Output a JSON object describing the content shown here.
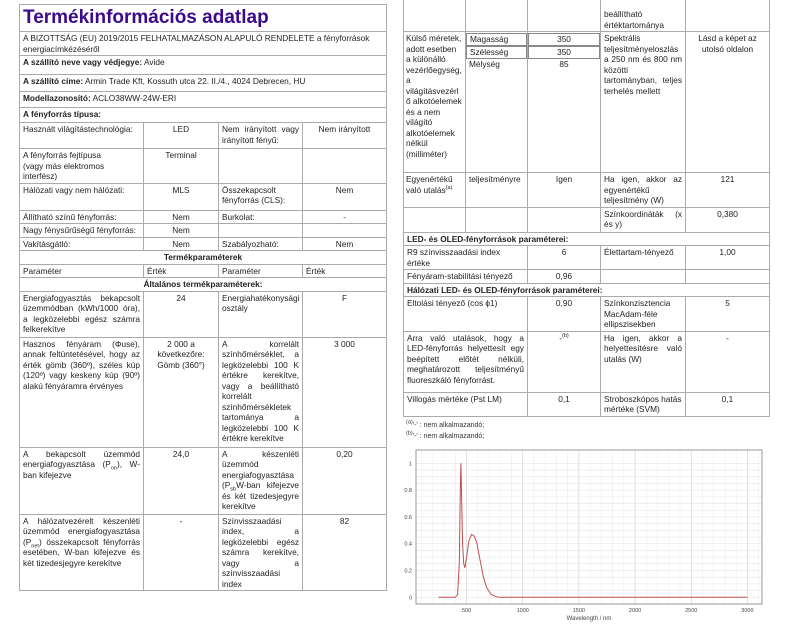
{
  "title": "Termékinformációs adatlap",
  "regulation": "A BIZOTTSÁG (EU) 2019/2015 FELHATALMAZÁSON ALAPULÓ RENDELETE a fényforrások energiacímkézéséről",
  "supplier": {
    "label": "A szállító neve vagy védjegye:",
    "value": "Avide"
  },
  "address": {
    "label": "A szállító címe:",
    "value": "Armin Trade Kft, Kossuth utca 22. II./4., 4024 Debrecen, HU"
  },
  "model": {
    "label": "Modellazonosító:",
    "value": "ACLO38WW-24W-ERI"
  },
  "type_label": "A fényforrás típusa:",
  "type_rows": [
    [
      "Használt világítástechnológia:",
      "LED",
      "Nem irányított vagy irányított fényű:",
      "Nem irányított"
    ],
    [
      "A fényforrás fejtípusa",
      "Terminal",
      "",
      ""
    ],
    [
      "(vagy más elektromos interfész)",
      "",
      "",
      ""
    ],
    [
      "Hálózati vagy nem hálózati:",
      "MLS",
      "Összekapcsolt fényforrás (CLS):",
      "Nem"
    ],
    [
      "Állítható színű fényforrás:",
      "Nem",
      "Burkolat:",
      "-"
    ],
    [
      "Nagy fénysűrűségű fényforrás:",
      "Nem",
      "",
      ""
    ],
    [
      "Vakításgátló:",
      "Nem",
      "Szabályozható:",
      "Nem"
    ]
  ],
  "params_title": "Termékparaméterek",
  "params_header": [
    "Paraméter",
    "Érték",
    "Paraméter",
    "Érték"
  ],
  "general_title": "Általános termékparaméterek:",
  "general_rows": [
    {
      "a": "Energiafogyasztás bekapcsolt üzemmódban (kWh/1000 óra), a legközelebbi egész számra felkerekítve",
      "b": "24",
      "c": "Energiahatékonysági osztály",
      "d": "F"
    },
    {
      "a": "Hasznos fényáram (Φuse), annak feltüntetésével, hogy az érték gömb (360º), széles kúp (120º) vagy keskeny kúp (90º) alakú fényáramra érvényes",
      "b": "2 000 a következőre: Gömb (360°)",
      "c": "A korrelált színhőmérséklet, a legközelebbi 100 K értékre kerekítve, vagy a beállítható korrelált színhőmérsékletek tartománya a legközelebbi 100 K értékre kerekítve",
      "d": "3 000"
    },
    {
      "a1": "A bekapcsolt üzemmód energiafogyasztása (P",
      "a_sub": "on",
      "a2": "), W-ban kifejezve",
      "b": "24,0",
      "c1": "A készenléti üzemmód energiafogyasztása (P",
      "c_sub": "sb",
      "c2": "W-ban kifejezve és két tizedesjegyre kerekítve",
      "d": "0,20"
    },
    {
      "a1": "A hálózatvezérelt készenléti üzemmód energiafogyasztása (P",
      "a_sub": "net",
      "a2": ") összekapcsolt fényforrás esetében, W-ban kifejezve és két tizedesjegyre kerekítve",
      "b": "-",
      "c": "Színvisszaadási index, a legközelebbi egész számra kerekítve, vagy a színvisszaadási index",
      "d": "82"
    }
  ],
  "right": {
    "cont": "beállítható értéktartománya",
    "dims": {
      "label": "Külső méretek, adott esetben a különálló vezérlőegység, a világításvezérlő alkotóelemek és a nem világító alkotóelemek nélkül (milliméter)",
      "items": [
        {
          "name": "Magasság",
          "value": "350"
        },
        {
          "name": "Szélesség",
          "value": "350"
        },
        {
          "name": "Mélység",
          "value": "85"
        }
      ],
      "spd_label": "Spektrális teljesítményeloszlás a 250 nm és 800 nm közötti tartományban, teljes terhelés mellett",
      "spd_value": "Lásd a képet az utolsó oldalon"
    },
    "equiv": {
      "label": "Egyenértékű való utalás",
      "sup": "(a)",
      "label2": "teljesítményre",
      "value": "Igen",
      "c": "Ha igen, akkor az egyenértékű teljesítmény (W)",
      "d": "121"
    },
    "coord": {
      "c": "Színkoordináták (x és y)",
      "d": "0,380"
    },
    "led_title": "LED- és OLED-fényforrások paraméterei:",
    "r9": {
      "a": "R9 színvisszaadási index értéke",
      "b": "6",
      "c": "Élettartam-tényező",
      "d": "1,00"
    },
    "flux": {
      "a": "Fényáram-stabilitási tényező",
      "b": "0,96"
    },
    "mains_title": "Hálózati LED- és OLED-fényforrások paraméterei:",
    "shift": {
      "a": "Eltolási tényező (cos ϕ1)",
      "b": "0,90",
      "c": "Színkonzisztencia MacAdam-féle ellipszisekben",
      "d": "5"
    },
    "replace": {
      "a": "Arra való utalások, hogy a LED-fényforrás helyettesít egy beépített előtét nélküli, meghatározott teljesítményű fluoreszkáló fényforrást.",
      "b": "-",
      "b_sup": "(b)",
      "c": "Ha igen, akkor a helyettesítésre való utalás (W)",
      "d": "-"
    },
    "flicker": {
      "a": "Villogás mértéke (Pst LM)",
      "b": "0,1",
      "c": "Stroboszkópos hatás mértéke (SVM)",
      "d": "0,1"
    },
    "foot_a_sup": "(a)",
    "foot_a": "'-' : nem alkalmazandó;",
    "foot_b_sup": "(b)",
    "foot_b": "'-' : nem alkalmazandó;"
  },
  "chart_data": {
    "type": "line",
    "xlabel": "Wavelength / nm",
    "ylabel": "",
    "xlim": [
      50,
      3130
    ],
    "ylim": [
      -0.05,
      1.1
    ],
    "xticks": [
      500,
      1000,
      1500,
      2000,
      2500,
      3000
    ],
    "yticks": [
      0,
      0.2,
      0.4,
      0.6,
      0.8,
      1
    ],
    "ytick_labels": [
      "0",
      "0.2",
      "0.4",
      "0.6",
      "0.8",
      "1"
    ],
    "grid": true,
    "color": "#c0504d",
    "series": [
      {
        "points": [
          [
            250,
            0
          ],
          [
            400,
            0
          ],
          [
            420,
            0.02
          ],
          [
            435,
            0.25
          ],
          [
            445,
            0.85
          ],
          [
            450,
            1.0
          ],
          [
            455,
            0.8
          ],
          [
            460,
            0.56
          ],
          [
            465,
            0.4
          ],
          [
            475,
            0.25
          ],
          [
            485,
            0.22
          ],
          [
            500,
            0.3
          ],
          [
            520,
            0.42
          ],
          [
            545,
            0.47
          ],
          [
            565,
            0.46
          ],
          [
            590,
            0.41
          ],
          [
            620,
            0.28
          ],
          [
            650,
            0.15
          ],
          [
            680,
            0.07
          ],
          [
            720,
            0.02
          ],
          [
            780,
            0
          ],
          [
            1000,
            0
          ],
          [
            3000,
            0
          ]
        ]
      }
    ]
  }
}
